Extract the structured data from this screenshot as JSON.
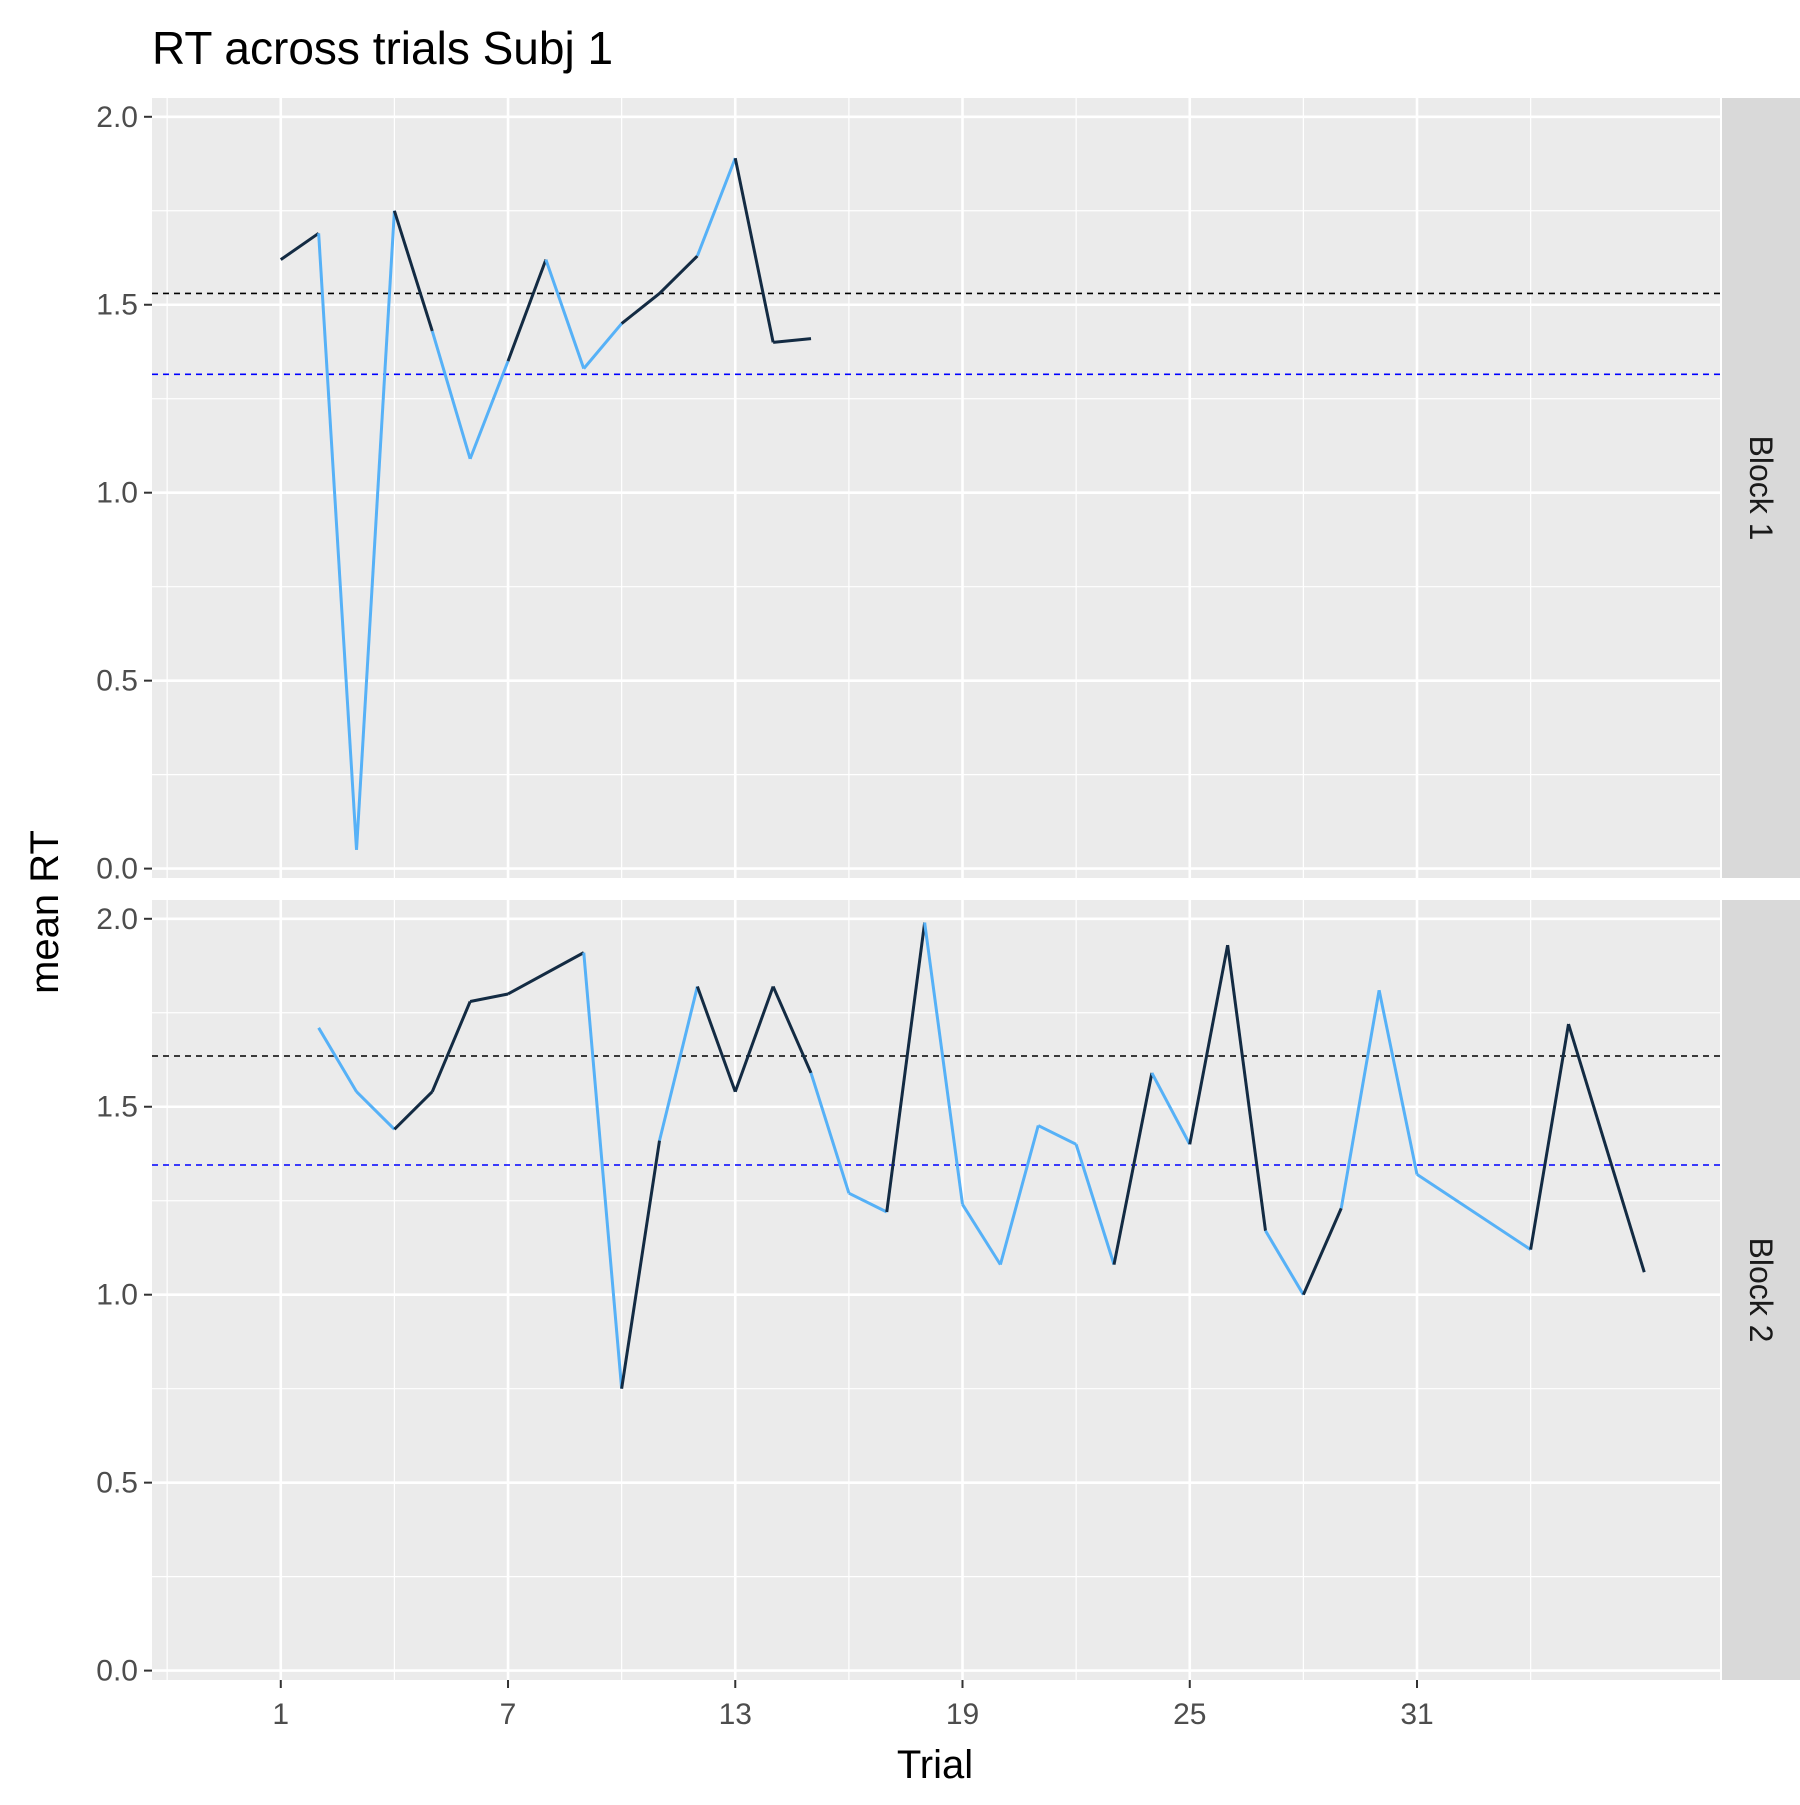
{
  "chart_data": {
    "type": "line",
    "title": "RT across trials Subj 1",
    "xlabel": "Trial",
    "ylabel": "mean RT",
    "x_ticks": [
      1,
      7,
      13,
      19,
      25,
      31
    ],
    "x_range": [
      -2.4,
      39
    ],
    "ylim": [
      -0.025,
      2.05
    ],
    "y_ticks": [
      0.0,
      0.5,
      1.0,
      1.5,
      2.0
    ],
    "y_tick_labels": [
      "0.0",
      "0.5",
      "1.0",
      "1.5",
      "2.0"
    ],
    "grid": true,
    "colors": {
      "panel_bg": "#ebebeb",
      "strip_bg": "#d9d9d9",
      "gridline": "#ffffff",
      "dark_line": "#132b43",
      "light_line": "#56b1f7",
      "overall_mean_line": "#000000",
      "blue_mean_line": "#0000ff"
    },
    "panels": [
      {
        "strip_label": "Block 1",
        "reference_lines": {
          "black_dashed": 1.53,
          "blue_dashed": 1.315
        },
        "points": [
          {
            "x": 1,
            "y": 1.62,
            "tone": "light"
          },
          {
            "x": 2,
            "y": 1.69,
            "tone": "dark"
          },
          {
            "x": 3,
            "y": 0.05,
            "tone": "light"
          },
          {
            "x": 4,
            "y": 1.75,
            "tone": "light"
          },
          {
            "x": 5,
            "y": 1.43,
            "tone": "dark"
          },
          {
            "x": 6,
            "y": 1.09,
            "tone": "light"
          },
          {
            "x": 7,
            "y": 1.35,
            "tone": "light"
          },
          {
            "x": 8,
            "y": 1.62,
            "tone": "dark"
          },
          {
            "x": 9,
            "y": 1.33,
            "tone": "light"
          },
          {
            "x": 10,
            "y": 1.45,
            "tone": "light"
          },
          {
            "x": 11,
            "y": 1.53,
            "tone": "dark"
          },
          {
            "x": 12,
            "y": 1.63,
            "tone": "dark"
          },
          {
            "x": 13,
            "y": 1.89,
            "tone": "light"
          },
          {
            "x": 14,
            "y": 1.4,
            "tone": "dark"
          },
          {
            "x": 15,
            "y": 1.41,
            "tone": "dark"
          }
        ]
      },
      {
        "strip_label": "Block 2",
        "reference_lines": {
          "black_dashed": 1.635,
          "blue_dashed": 1.345
        },
        "points": [
          {
            "x": 2,
            "y": 1.71,
            "tone": "light"
          },
          {
            "x": 3,
            "y": 1.54,
            "tone": "light"
          },
          {
            "x": 4,
            "y": 1.44,
            "tone": "light"
          },
          {
            "x": 5,
            "y": 1.54,
            "tone": "dark"
          },
          {
            "x": 6,
            "y": 1.78,
            "tone": "dark"
          },
          {
            "x": 7,
            "y": 1.8,
            "tone": "dark"
          },
          {
            "x": 9,
            "y": 1.91,
            "tone": "dark"
          },
          {
            "x": 10,
            "y": 0.75,
            "tone": "light"
          },
          {
            "x": 11,
            "y": 1.41,
            "tone": "dark"
          },
          {
            "x": 12,
            "y": 1.82,
            "tone": "light"
          },
          {
            "x": 13,
            "y": 1.54,
            "tone": "dark"
          },
          {
            "x": 14,
            "y": 1.82,
            "tone": "dark"
          },
          {
            "x": 15,
            "y": 1.59,
            "tone": "dark"
          },
          {
            "x": 16,
            "y": 1.27,
            "tone": "light"
          },
          {
            "x": 17,
            "y": 1.22,
            "tone": "light"
          },
          {
            "x": 18,
            "y": 1.99,
            "tone": "dark"
          },
          {
            "x": 19,
            "y": 1.24,
            "tone": "light"
          },
          {
            "x": 20,
            "y": 1.08,
            "tone": "light"
          },
          {
            "x": 21,
            "y": 1.45,
            "tone": "light"
          },
          {
            "x": 22,
            "y": 1.4,
            "tone": "light"
          },
          {
            "x": 23,
            "y": 1.08,
            "tone": "light"
          },
          {
            "x": 24,
            "y": 1.59,
            "tone": "dark"
          },
          {
            "x": 25,
            "y": 1.4,
            "tone": "light"
          },
          {
            "x": 26,
            "y": 1.93,
            "tone": "dark"
          },
          {
            "x": 27,
            "y": 1.17,
            "tone": "dark"
          },
          {
            "x": 28,
            "y": 1.0,
            "tone": "light"
          },
          {
            "x": 29,
            "y": 1.23,
            "tone": "dark"
          },
          {
            "x": 30,
            "y": 1.81,
            "tone": "light"
          },
          {
            "x": 31,
            "y": 1.32,
            "tone": "light"
          },
          {
            "x": 34,
            "y": 1.12,
            "tone": "light"
          },
          {
            "x": 35,
            "y": 1.72,
            "tone": "dark"
          },
          {
            "x": 37,
            "y": 1.06,
            "tone": "dark"
          }
        ]
      }
    ]
  }
}
